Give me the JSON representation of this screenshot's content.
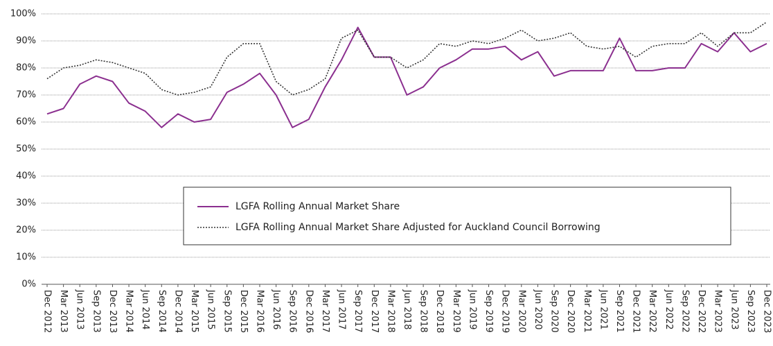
{
  "chart_data": {
    "type": "line",
    "categories": [
      "Dec 2012",
      "Mar 2013",
      "Jun 2013",
      "Sep 2013",
      "Dec 2013",
      "Mar 2014",
      "Jun 2014",
      "Sep 2014",
      "Dec 2014",
      "Mar 2015",
      "Jun 2015",
      "Sep 2015",
      "Dec 2015",
      "Mar 2016",
      "Jun 2016",
      "Sep 2016",
      "Dec 2016",
      "Mar 2017",
      "Jun 2017",
      "Sep 2017",
      "Dec 2017",
      "Mar 2018",
      "Jun 2018",
      "Sep 2018",
      "Dec 2018",
      "Mar 2019",
      "Jun 2019",
      "Sep 2019",
      "Dec 2019",
      "Mar 2020",
      "Jun 2020",
      "Sep 2020",
      "Dec 2020",
      "Mar 2021",
      "Jun 2021",
      "Sep 2021",
      "Dec 2021",
      "Mar 2022",
      "Jun 2022",
      "Sep 2022",
      "Dec 2022",
      "Mar 2023",
      "Jun 2023",
      "Sep 2023",
      "Dec 2023"
    ],
    "series": [
      {
        "name": "LGFA Rolling Annual Market Share",
        "color": "#8b2f8f",
        "line_style": "solid",
        "values": [
          63,
          65,
          74,
          77,
          75,
          67,
          64,
          58,
          63,
          60,
          61,
          71,
          74,
          78,
          70,
          58,
          61,
          73,
          83,
          95,
          84,
          84,
          70,
          73,
          80,
          83,
          87,
          87,
          88,
          83,
          86,
          77,
          79,
          79,
          79,
          91,
          79,
          79,
          80,
          80,
          89,
          86,
          93,
          86,
          89
        ]
      },
      {
        "name": "LGFA Rolling Annual Market Share Adjusted for Auckland Council Borrowing",
        "color": "#333333",
        "line_style": "dotted",
        "values": [
          76,
          80,
          81,
          83,
          82,
          80,
          78,
          72,
          70,
          71,
          73,
          84,
          89,
          89,
          75,
          70,
          72,
          76,
          91,
          94,
          84,
          84,
          80,
          83,
          89,
          88,
          90,
          89,
          91,
          94,
          90,
          91,
          93,
          88,
          87,
          88,
          84,
          88,
          89,
          89,
          93,
          88,
          93,
          93,
          97
        ]
      }
    ],
    "ylim": [
      0,
      100
    ],
    "yticks": [
      {
        "value": 0,
        "label": "0%"
      },
      {
        "value": 10,
        "label": "10%"
      },
      {
        "value": 20,
        "label": "20%"
      },
      {
        "value": 30,
        "label": "30%"
      },
      {
        "value": 40,
        "label": "40%"
      },
      {
        "value": 50,
        "label": "50%"
      },
      {
        "value": 60,
        "label": "60%"
      },
      {
        "value": 70,
        "label": "70%"
      },
      {
        "value": 80,
        "label": "80%"
      },
      {
        "value": 90,
        "label": "90%"
      },
      {
        "value": 100,
        "label": "100%"
      }
    ],
    "grid": true
  }
}
